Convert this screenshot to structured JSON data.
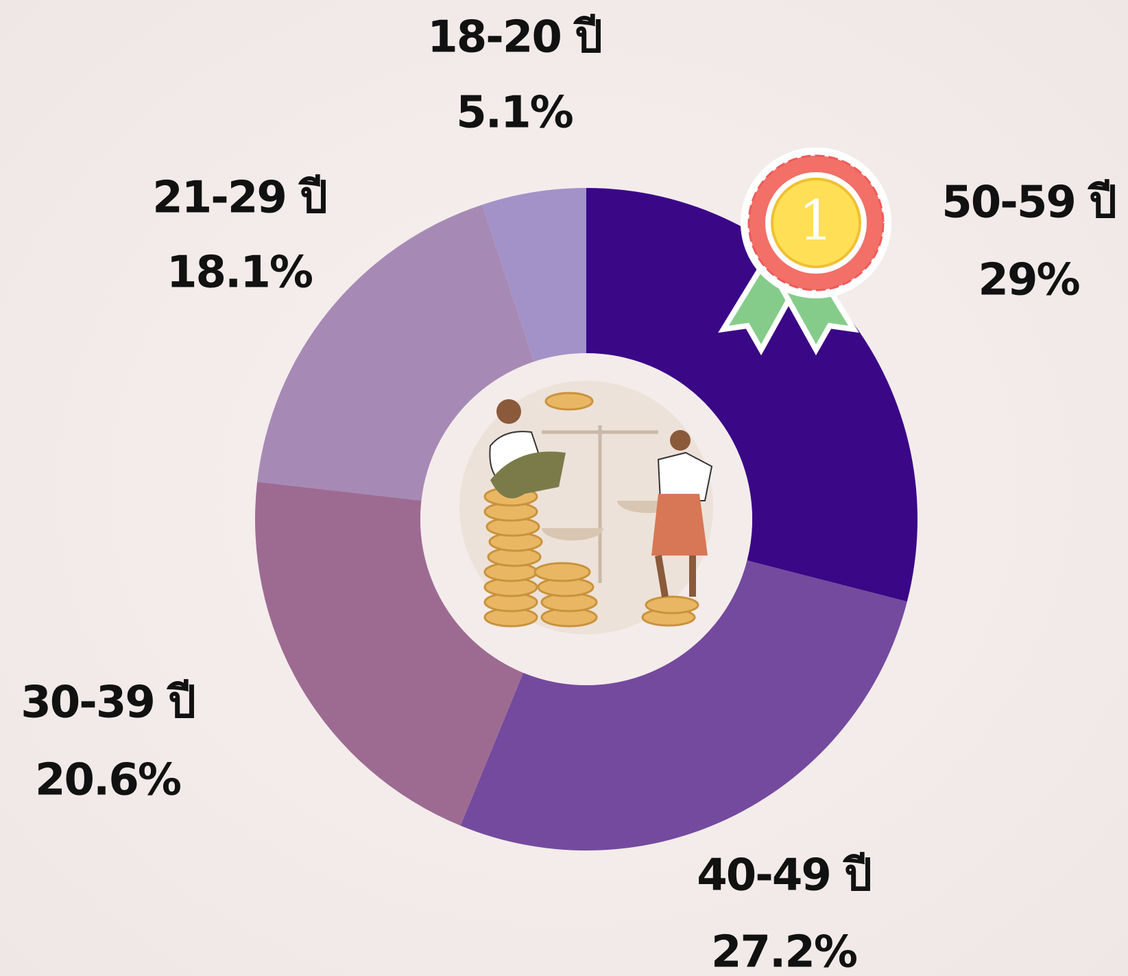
{
  "chart_data": {
    "type": "donut",
    "categories": [
      "50-59 ปี",
      "40-49 ปี",
      "30-39 ปี",
      "21-29 ปี",
      "18-20 ปี"
    ],
    "values": [
      29,
      27.2,
      20.6,
      18.1,
      5.1
    ],
    "value_labels": [
      "29%",
      "27.2%",
      "20.6%",
      "18.1%",
      "5.1%"
    ],
    "colors": [
      "#3a0787",
      "#744a9e",
      "#9d6b92",
      "#a68ab5",
      "#a392c8"
    ]
  }
}
